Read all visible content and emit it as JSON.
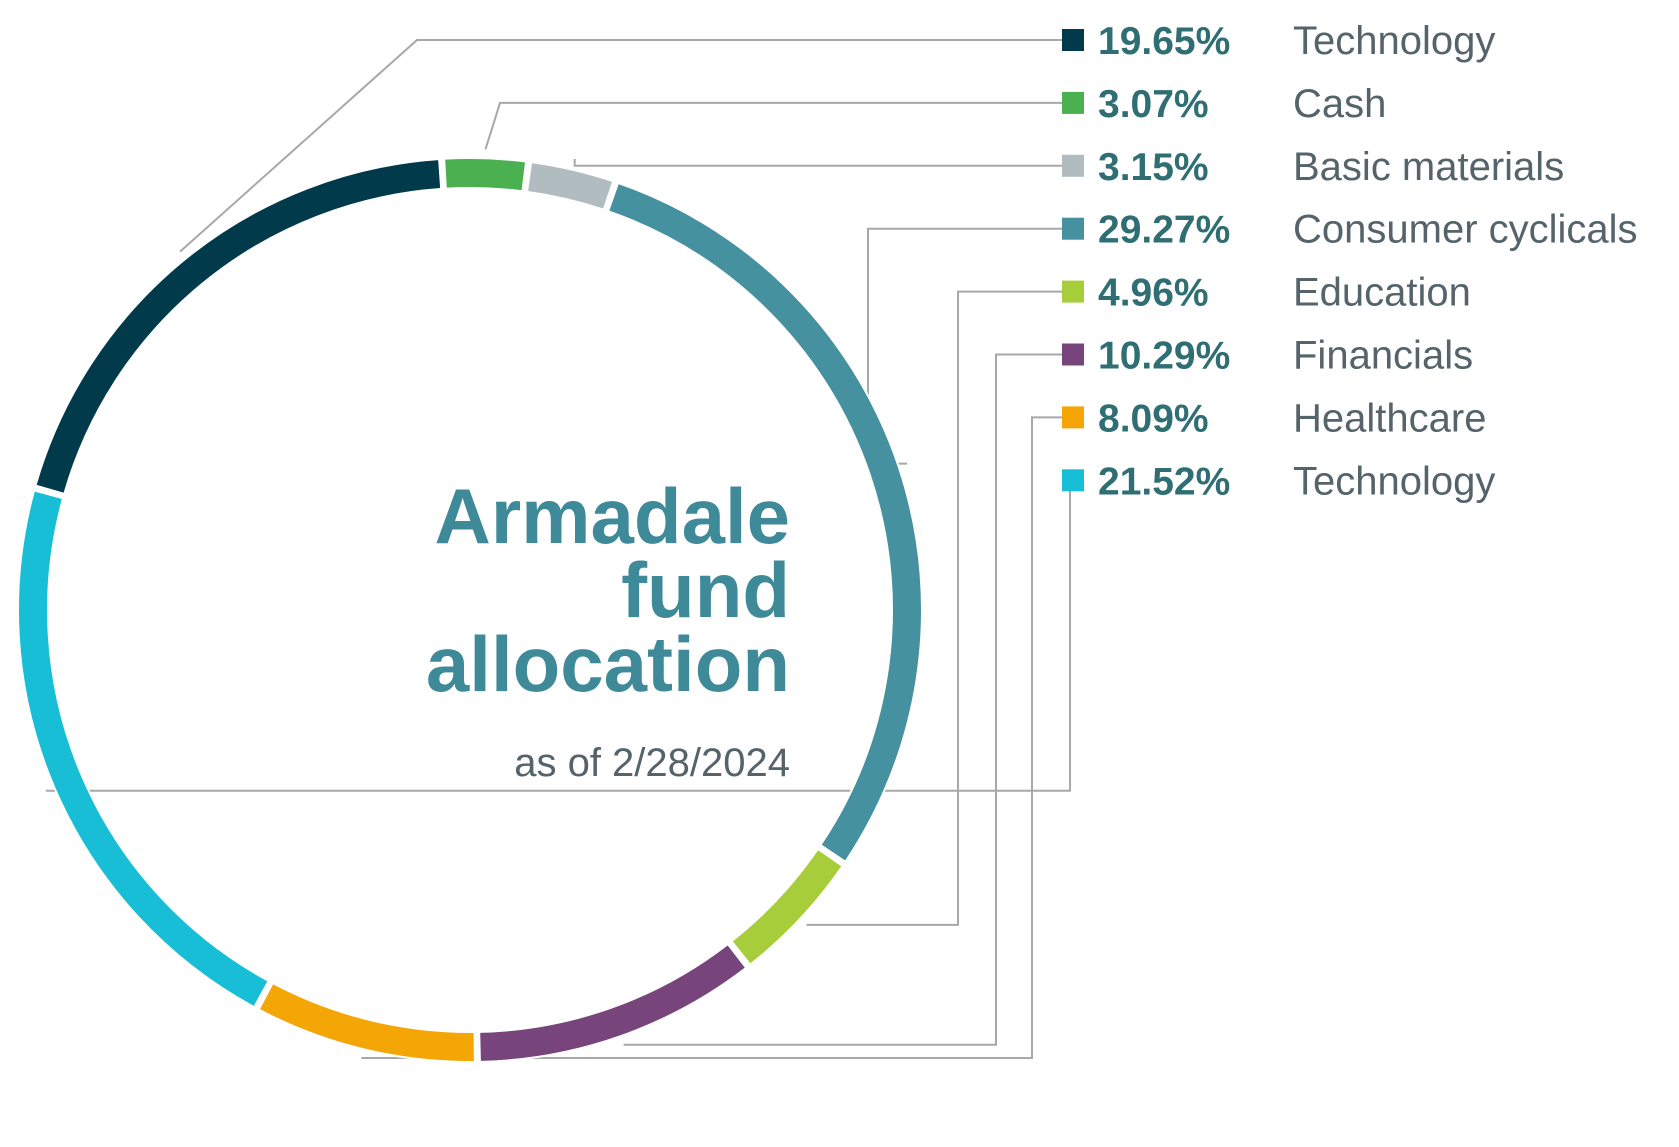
{
  "chart_data": {
    "type": "pie",
    "variant": "donut",
    "title_lines": [
      "Armadale",
      "fund",
      "allocation"
    ],
    "subtitle": "as of 2/28/2024",
    "legend_position": "right",
    "slices": [
      {
        "label": "Technology",
        "value": 19.65,
        "display": "19.65%",
        "color": "#003a4b"
      },
      {
        "label": "Cash",
        "value": 3.07,
        "display": "3.07%",
        "color": "#4bb04f"
      },
      {
        "label": "Basic materials",
        "value": 3.15,
        "display": "3.15%",
        "color": "#b1bcc1"
      },
      {
        "label": "Consumer cyclicals",
        "value": 29.27,
        "display": "29.27%",
        "color": "#4591a0"
      },
      {
        "label": "Education",
        "value": 4.96,
        "display": "4.96%",
        "color": "#a8cd3a"
      },
      {
        "label": "Financials",
        "value": 10.29,
        "display": "10.29%",
        "color": "#77457c"
      },
      {
        "label": "Healthcare",
        "value": 8.09,
        "display": "8.09%",
        "color": "#f4a607"
      },
      {
        "label": "Technology",
        "value": 21.52,
        "display": "21.52%",
        "color": "#17bed6"
      }
    ],
    "colors": {
      "percent_text": "#2f6f74",
      "label_text": "#55636a",
      "title_text": "#3f8a98",
      "leader_lines": "#a8a8a8"
    }
  }
}
